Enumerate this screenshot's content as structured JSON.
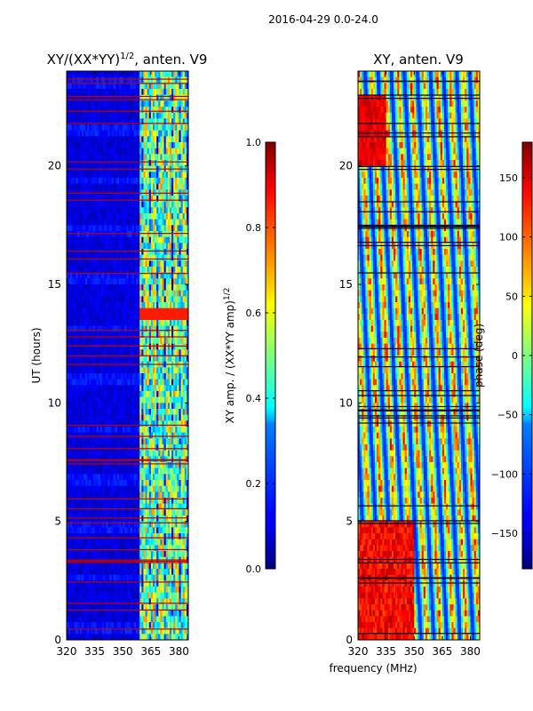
{
  "figure": {
    "suptitle": "2016-04-29 0.0-24.0",
    "xlabel": "frequency (MHz)"
  },
  "chart_data": [
    {
      "type": "heatmap",
      "title_main": "XY/(XX*YY)",
      "title_exp": "1/2",
      "title_suffix": ", anten. V9",
      "ylabel": "UT (hours)",
      "xlim": [
        320,
        385
      ],
      "ylim": [
        0,
        24
      ],
      "xticks": [
        320,
        335,
        350,
        365,
        380
      ],
      "yticks": [
        0,
        5,
        10,
        15,
        20
      ],
      "colormap": "jet",
      "colorbar": {
        "label_main": "XY amp. / (XX*YY amp)",
        "label_exp": "1/2",
        "vmin": 0.0,
        "vmax": 1.0,
        "ticks": [
          0.0,
          0.2,
          0.4,
          0.6,
          0.8,
          1.0
        ],
        "tick_labels": [
          "0.0",
          "0.2",
          "0.4",
          "0.6",
          "0.8",
          "1.0"
        ]
      }
    },
    {
      "type": "heatmap",
      "title": "XY, anten. V9",
      "ylabel": "",
      "xlim": [
        320,
        385
      ],
      "ylim": [
        0,
        24
      ],
      "xticks": [
        320,
        335,
        350,
        365,
        380
      ],
      "yticks": [
        0,
        5,
        10,
        15,
        20
      ],
      "colormap": "jet",
      "colorbar": {
        "label": "phase (deg)",
        "vmin": -180,
        "vmax": 180,
        "ticks": [
          -150,
          -100,
          -50,
          0,
          50,
          100,
          150
        ],
        "tick_labels": [
          "−150",
          "−100",
          "−50",
          "0",
          "50",
          "100",
          "150"
        ]
      }
    }
  ],
  "colors": {
    "jet_dark_blue": "#00007f",
    "jet_blue": "#0000ff",
    "jet_cyan": "#00ffff",
    "jet_yellow": "#ffff00",
    "jet_red": "#ff0000",
    "jet_dark_red": "#7f0000"
  }
}
